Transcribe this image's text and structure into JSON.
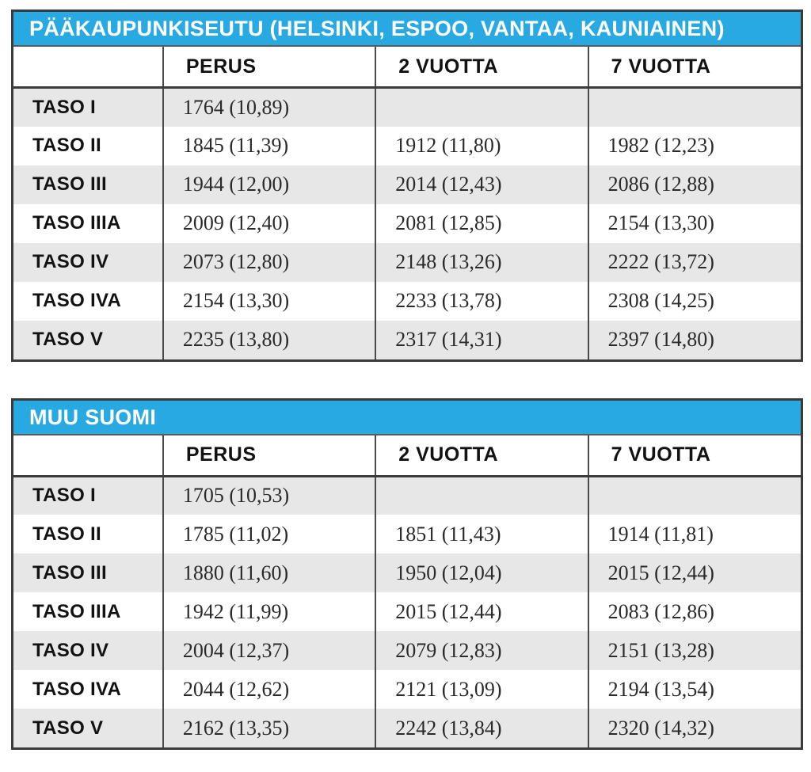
{
  "colors": {
    "header_bg": "#29a9e1",
    "header_text": "#ffffff",
    "stripe_bg": "#e7e7e7",
    "border_dark": "#3b3b3b"
  },
  "tables": [
    {
      "title": "PÄÄKAUPUNKISEUTU (HELSINKI, ESPOO, VANTAA, KAUNIAINEN)",
      "columns": [
        "",
        "PERUS",
        "2 VUOTTA",
        "7 VUOTTA"
      ],
      "rows": [
        {
          "label": "TASO I",
          "perus": "1764 (10,89)",
          "v2": "",
          "v7": ""
        },
        {
          "label": "TASO II",
          "perus": "1845 (11,39)",
          "v2": "1912 (11,80)",
          "v7": "1982 (12,23)"
        },
        {
          "label": "TASO III",
          "perus": "1944 (12,00)",
          "v2": "2014 (12,43)",
          "v7": "2086 (12,88)"
        },
        {
          "label": "TASO IIIA",
          "perus": "2009 (12,40)",
          "v2": "2081 (12,85)",
          "v7": "2154 (13,30)"
        },
        {
          "label": "TASO IV",
          "perus": "2073 (12,80)",
          "v2": "2148 (13,26)",
          "v7": "2222 (13,72)"
        },
        {
          "label": "TASO IVA",
          "perus": "2154 (13,30)",
          "v2": "2233 (13,78)",
          "v7": "2308 (14,25)"
        },
        {
          "label": "TASO V",
          "perus": "2235 (13,80)",
          "v2": "2317 (14,31)",
          "v7": "2397 (14,80)"
        }
      ]
    },
    {
      "title": "MUU SUOMI",
      "columns": [
        "",
        "PERUS",
        "2 VUOTTA",
        "7 VUOTTA"
      ],
      "rows": [
        {
          "label": "TASO I",
          "perus": "1705 (10,53)",
          "v2": "",
          "v7": ""
        },
        {
          "label": "TASO II",
          "perus": "1785 (11,02)",
          "v2": "1851 (11,43)",
          "v7": "1914 (11,81)"
        },
        {
          "label": "TASO III",
          "perus": "1880 (11,60)",
          "v2": "1950 (12,04)",
          "v7": "2015 (12,44)"
        },
        {
          "label": "TASO IIIA",
          "perus": "1942 (11,99)",
          "v2": "2015 (12,44)",
          "v7": "2083 (12,86)"
        },
        {
          "label": "TASO IV",
          "perus": "2004 (12,37)",
          "v2": "2079 (12,83)",
          "v7": "2151 (13,28)"
        },
        {
          "label": "TASO IVA",
          "perus": "2044 (12,62)",
          "v2": "2121 (13,09)",
          "v7": "2194 (13,54)"
        },
        {
          "label": "TASO V",
          "perus": "2162 (13,35)",
          "v2": "2242 (13,84)",
          "v7": "2320 (14,32)"
        }
      ]
    }
  ]
}
